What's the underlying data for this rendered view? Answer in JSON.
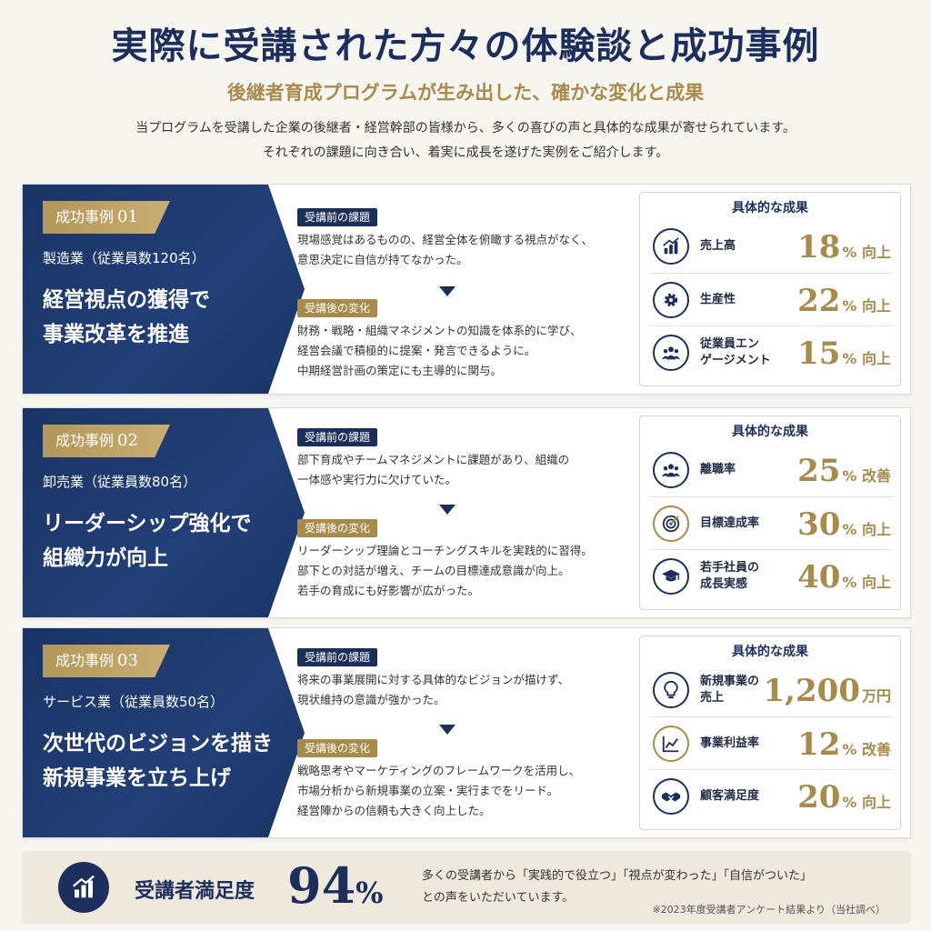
{
  "header": {
    "title": "実際に受講された方々の体験談と成功事例",
    "subtitle": "後継者育成プログラムが生み出した、確かな変化と成果",
    "intro_line1": "当プログラムを受講した企業の後継者・経営幹部の皆様から、多くの喜びの声と具体的な成果が寄せられています。",
    "intro_line2": "それぞれの課題に向き合い、着実に成長を遂げた実例をご紹介します。"
  },
  "labels": {
    "before": "受講前の課題",
    "after": "受講後の変化",
    "results_title": "具体的な成果"
  },
  "cases": [
    {
      "tag": "成功事例",
      "number": "01",
      "industry": "製造業（従業員数120名）",
      "headline_line1": "経営視点の獲得で",
      "headline_line2": "事業改革を推進",
      "before_line1": "現場感覚はあるものの、経営全体を俯瞰する視点がなく、",
      "before_line2": "意思決定に自信が持てなかった。",
      "after_line1": "財務・戦略・組織マネジメントの知識を体系的に学び、",
      "after_line2": "経営会議で積極的に提案・発言できるように。",
      "after_line3": "中期経営計画の策定にも主導的に関与。",
      "results": [
        {
          "icon": "bar-chart-icon",
          "label_line1": "売上高",
          "label_line2": "",
          "value": "18",
          "unit": "% 向上"
        },
        {
          "icon": "gear-icon",
          "label_line1": "生産性",
          "label_line2": "",
          "value": "22",
          "unit": "% 向上"
        },
        {
          "icon": "people-icon",
          "label_line1": "従業員エン",
          "label_line2": "ゲージメント",
          "value": "15",
          "unit": "% 向上"
        }
      ]
    },
    {
      "tag": "成功事例",
      "number": "02",
      "industry": "卸売業（従業員数80名）",
      "headline_line1": "リーダーシップ強化で",
      "headline_line2": "組織力が向上",
      "before_line1": "部下育成やチームマネジメントに課題があり、組織の",
      "before_line2": "一体感や実行力に欠けていた。",
      "after_line1": "リーダーシップ理論とコーチングスキルを実践的に習得。",
      "after_line2": "部下との対話が増え、チームの目標達成意識が向上。",
      "after_line3": "若手の育成にも好影響が広がった。",
      "results": [
        {
          "icon": "people-icon",
          "label_line1": "離職率",
          "label_line2": "",
          "value": "25",
          "unit": "% 改善"
        },
        {
          "icon": "target-icon",
          "label_line1": "目標達成率",
          "label_line2": "",
          "value": "30",
          "unit": "% 向上"
        },
        {
          "icon": "graduation-cap-icon",
          "label_line1": "若手社員の",
          "label_line2": "成長実感",
          "value": "40",
          "unit": "% 向上"
        }
      ]
    },
    {
      "tag": "成功事例",
      "number": "03",
      "industry": "サービス業（従業員数50名）",
      "headline_line1": "次世代のビジョンを描き",
      "headline_line2": "新規事業を立ち上げ",
      "before_line1": "将来の事業展開に対する具体的なビジョンが描けず、",
      "before_line2": "現状維持の意識が強かった。",
      "after_line1": "戦略思考やマーケティングのフレームワークを活用し、",
      "after_line2": "市場分析から新規事業の立案・実行までをリード。",
      "after_line3": "経営陣からの信頼も大きく向上した。",
      "results": [
        {
          "icon": "lightbulb-icon",
          "label_line1": "新規事業の",
          "label_line2": "売上",
          "value": "1,200",
          "unit": "万円"
        },
        {
          "icon": "line-chart-icon",
          "label_line1": "事業利益率",
          "label_line2": "",
          "value": "12",
          "unit": "% 改善"
        },
        {
          "icon": "handshake-icon",
          "label_line1": "顧客満足度",
          "label_line2": "",
          "value": "20",
          "unit": "% 向上"
        }
      ]
    }
  ],
  "footer": {
    "icon": "bar-chart-icon",
    "label": "受講者満足度",
    "value": "94",
    "unit": "%",
    "comment_line1": "多くの受講者から「実践的で役立つ」「視点が変わった」「自信がついた」",
    "comment_line2": "との声をいただいています。",
    "note": "※2023年度受講者アンケート結果より（当社調べ）"
  },
  "colors": {
    "navy": "#1c2f5c",
    "gold": "#a88a4b",
    "background": "#f7f5f0"
  }
}
